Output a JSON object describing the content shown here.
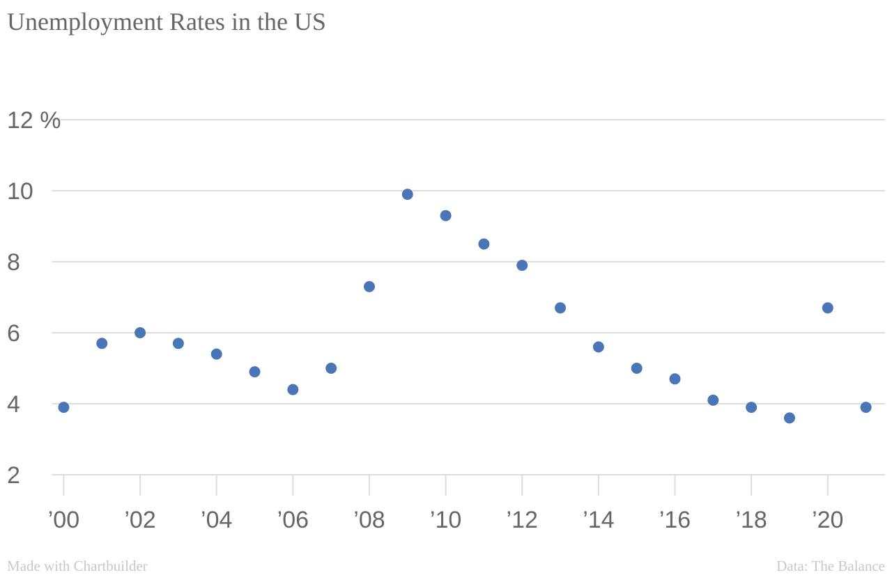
{
  "chart_data": {
    "type": "scatter",
    "title": "Unemployment Rates in the US",
    "xlabel": "",
    "ylabel": "",
    "x": [
      2000,
      2001,
      2002,
      2003,
      2004,
      2005,
      2006,
      2007,
      2008,
      2009,
      2010,
      2011,
      2012,
      2013,
      2014,
      2015,
      2016,
      2017,
      2018,
      2019,
      2020,
      2021
    ],
    "series": [
      {
        "values": [
          3.9,
          5.7,
          6.0,
          5.7,
          5.4,
          4.9,
          4.4,
          5.0,
          7.3,
          9.9,
          9.3,
          8.5,
          7.9,
          6.7,
          5.6,
          5.0,
          4.7,
          4.1,
          3.9,
          3.6,
          6.7,
          3.9
        ]
      }
    ],
    "xlim": [
      1999.7,
      2021.5
    ],
    "ylim": [
      2,
      12
    ],
    "x_ticks": [
      2000,
      2002,
      2004,
      2006,
      2008,
      2010,
      2012,
      2014,
      2016,
      2018,
      2020
    ],
    "x_tick_labels": [
      "’00",
      "’02",
      "’04",
      "’06",
      "’08",
      "’10",
      "’12",
      "’14",
      "’16",
      "’18",
      "’20"
    ],
    "y_ticks": [
      2,
      4,
      6,
      8,
      10,
      12
    ],
    "y_tick_labels": [
      "2",
      "4",
      "6",
      "8",
      "10",
      "12 %"
    ],
    "grid": true,
    "legend": "none",
    "colors": {
      "marker": "#4a76b8",
      "grid": "#dddddd",
      "tick_label": "#666666"
    }
  },
  "footer": {
    "credit": "Made with Chartbuilder",
    "source": "Data: The Balance"
  }
}
